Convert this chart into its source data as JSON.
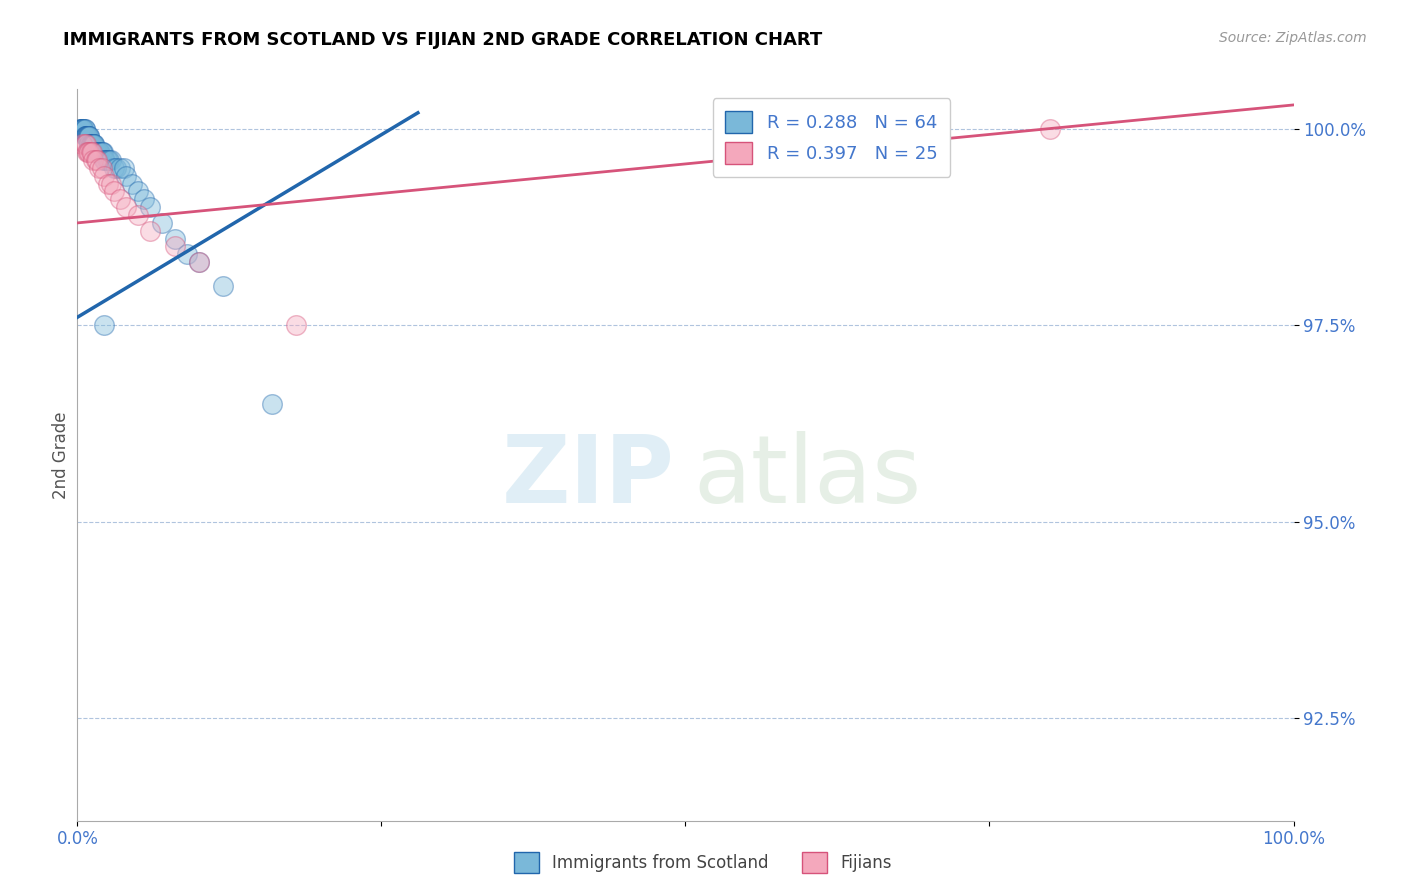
{
  "title": "IMMIGRANTS FROM SCOTLAND VS FIJIAN 2ND GRADE CORRELATION CHART",
  "source_text": "Source: ZipAtlas.com",
  "ylabel": "2nd Grade",
  "legend_label_blue": "Immigrants from Scotland",
  "legend_label_pink": "Fijians",
  "r_blue": 0.288,
  "n_blue": 64,
  "r_pink": 0.397,
  "n_pink": 25,
  "xmin": 0.0,
  "xmax": 1.0,
  "ymin": 0.912,
  "ymax": 1.005,
  "yticks": [
    0.925,
    0.95,
    0.975,
    1.0
  ],
  "ytick_labels": [
    "92.5%",
    "95.0%",
    "97.5%",
    "100.0%"
  ],
  "color_blue": "#7ab8d9",
  "color_pink": "#f4a8bc",
  "line_color_blue": "#2166ac",
  "line_color_pink": "#d6537a",
  "blue_x": [
    0.002,
    0.003,
    0.003,
    0.004,
    0.004,
    0.005,
    0.005,
    0.005,
    0.006,
    0.006,
    0.006,
    0.007,
    0.007,
    0.007,
    0.008,
    0.008,
    0.009,
    0.009,
    0.01,
    0.01,
    0.01,
    0.01,
    0.011,
    0.011,
    0.012,
    0.012,
    0.013,
    0.013,
    0.014,
    0.014,
    0.015,
    0.015,
    0.016,
    0.016,
    0.017,
    0.018,
    0.018,
    0.019,
    0.02,
    0.02,
    0.021,
    0.022,
    0.022,
    0.023,
    0.024,
    0.025,
    0.026,
    0.028,
    0.03,
    0.032,
    0.035,
    0.038,
    0.04,
    0.045,
    0.05,
    0.055,
    0.06,
    0.07,
    0.08,
    0.09,
    0.1,
    0.12,
    0.022,
    0.16
  ],
  "blue_y": [
    1.0,
    1.0,
    1.0,
    1.0,
    1.0,
    1.0,
    1.0,
    1.0,
    1.0,
    1.0,
    0.999,
    0.999,
    0.999,
    0.999,
    0.999,
    0.999,
    0.999,
    0.999,
    0.999,
    0.999,
    0.998,
    0.998,
    0.998,
    0.998,
    0.998,
    0.998,
    0.998,
    0.998,
    0.998,
    0.998,
    0.997,
    0.997,
    0.997,
    0.997,
    0.997,
    0.997,
    0.997,
    0.997,
    0.997,
    0.997,
    0.997,
    0.996,
    0.996,
    0.996,
    0.996,
    0.996,
    0.996,
    0.996,
    0.995,
    0.995,
    0.995,
    0.995,
    0.994,
    0.993,
    0.992,
    0.991,
    0.99,
    0.988,
    0.986,
    0.984,
    0.983,
    0.98,
    0.975,
    0.965
  ],
  "pink_x": [
    0.004,
    0.006,
    0.007,
    0.008,
    0.009,
    0.01,
    0.011,
    0.012,
    0.013,
    0.015,
    0.016,
    0.018,
    0.02,
    0.022,
    0.025,
    0.028,
    0.03,
    0.035,
    0.04,
    0.05,
    0.06,
    0.08,
    0.1,
    0.18,
    0.8
  ],
  "pink_y": [
    0.998,
    0.998,
    0.998,
    0.997,
    0.997,
    0.997,
    0.997,
    0.997,
    0.996,
    0.996,
    0.996,
    0.995,
    0.995,
    0.994,
    0.993,
    0.993,
    0.992,
    0.991,
    0.99,
    0.989,
    0.987,
    0.985,
    0.983,
    0.975,
    1.0
  ],
  "blue_line_x0": 0.0,
  "blue_line_x1": 0.28,
  "blue_line_y0": 0.976,
  "blue_line_y1": 1.002,
  "pink_line_x0": 0.0,
  "pink_line_x1": 1.0,
  "pink_line_y0": 0.988,
  "pink_line_y1": 1.003
}
